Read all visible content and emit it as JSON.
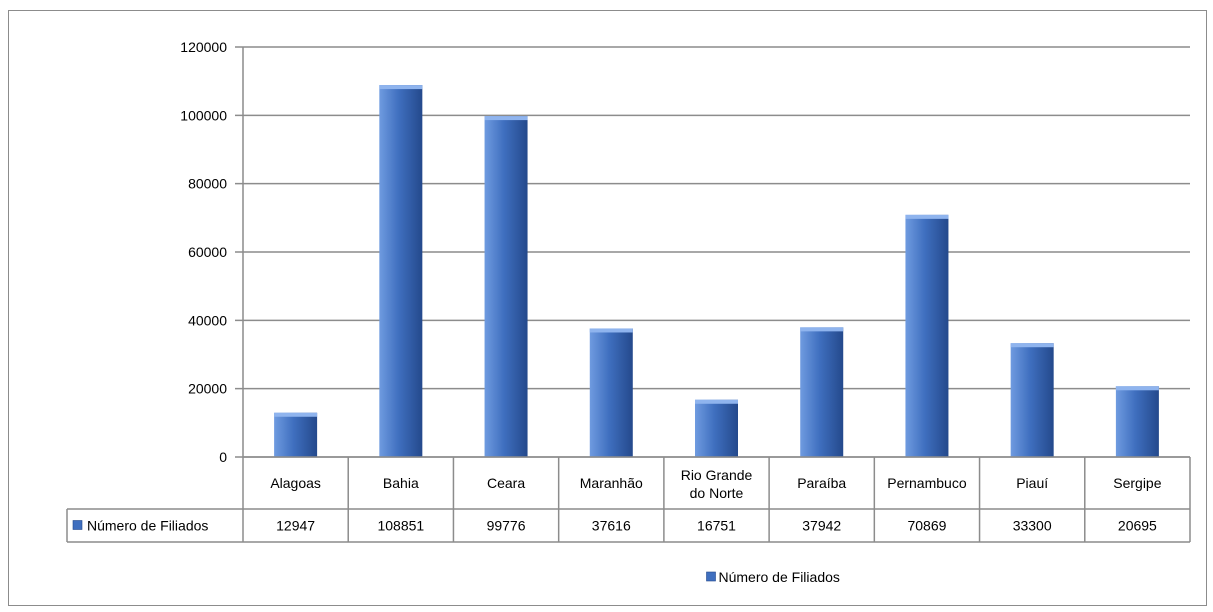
{
  "chart_data": {
    "type": "bar",
    "title": "",
    "xlabel": "",
    "ylabel": "",
    "categories": [
      "Alagoas",
      "Bahia",
      "Ceara",
      "Maranhão",
      "Rio Grande do Norte",
      "Paraíba",
      "Pernambuco",
      "Piauí",
      "Sergipe"
    ],
    "series": [
      {
        "name": "Número de Filiados",
        "values": [
          12947,
          108851,
          99776,
          37616,
          16751,
          37942,
          70869,
          33300,
          20695
        ]
      }
    ],
    "value_labels": [
      "12947",
      "108851",
      "99776",
      "37616",
      "16751",
      "37942",
      "70869",
      "33300",
      "20695"
    ],
    "ylim": [
      0,
      120000
    ],
    "yticks": [
      "0",
      "20000",
      "40000",
      "60000",
      "80000",
      "100000",
      "120000"
    ],
    "grid": true,
    "legend": {
      "position": "bottom",
      "label": "Número de Filiados"
    },
    "data_table": true,
    "colors": {
      "bar_light": "#6f9be0",
      "bar_mid": "#3f6fbf",
      "bar_dark": "#24498c",
      "grid": "#8c8c8c"
    }
  }
}
